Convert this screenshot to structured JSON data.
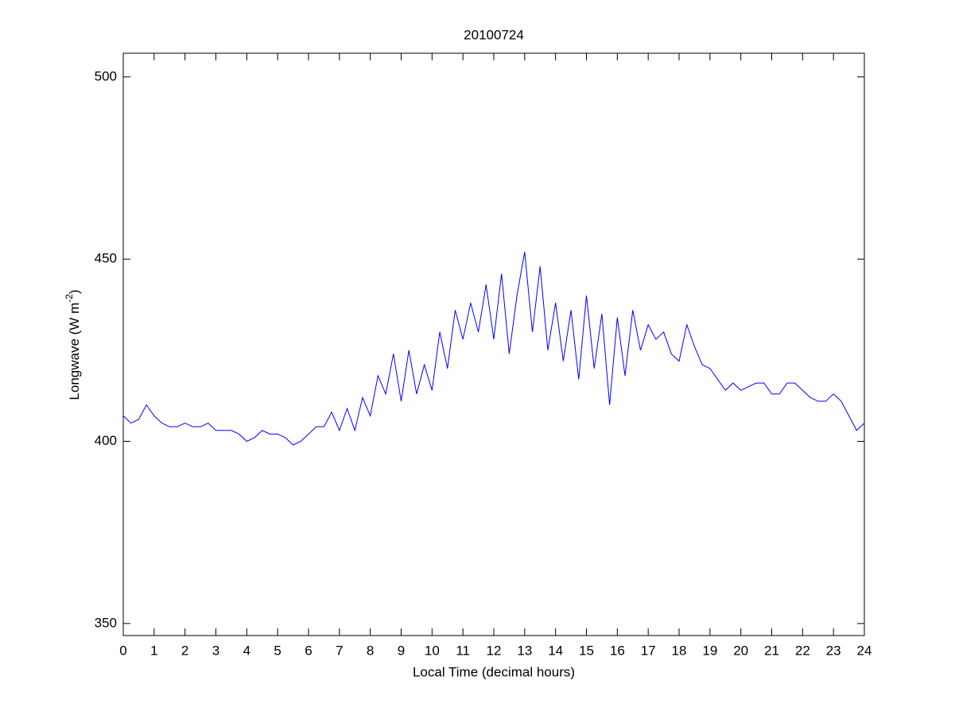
{
  "chart_data": {
    "type": "line",
    "title": "20100724",
    "xlabel": "Local Time (decimal hours)",
    "ylabel": {
      "text": "Longwave (W m",
      "superscript": "-2",
      "suffix": ")"
    },
    "x": [
      0,
      0.25,
      0.5,
      0.75,
      1,
      1.25,
      1.5,
      1.75,
      2,
      2.25,
      2.5,
      2.75,
      3,
      3.25,
      3.5,
      3.75,
      4,
      4.25,
      4.5,
      4.75,
      5,
      5.25,
      5.5,
      5.75,
      6,
      6.25,
      6.5,
      6.75,
      7,
      7.25,
      7.5,
      7.75,
      8,
      8.25,
      8.5,
      8.75,
      9,
      9.25,
      9.5,
      9.75,
      10,
      10.25,
      10.5,
      10.75,
      11,
      11.25,
      11.5,
      11.75,
      12,
      12.25,
      12.5,
      12.75,
      13,
      13.25,
      13.5,
      13.75,
      14,
      14.25,
      14.5,
      14.75,
      15,
      15.25,
      15.5,
      15.75,
      16,
      16.25,
      16.5,
      16.75,
      17,
      17.25,
      17.5,
      17.75,
      18,
      18.25,
      18.5,
      18.75,
      19,
      19.25,
      19.5,
      19.75,
      20,
      20.25,
      20.5,
      20.75,
      21,
      21.25,
      21.5,
      21.75,
      22,
      22.25,
      22.5,
      22.75,
      23,
      23.25,
      23.5,
      23.75,
      24
    ],
    "series": [
      {
        "color": "#0000ff",
        "values": [
          407,
          405,
          406,
          410,
          407,
          405,
          404,
          404,
          405,
          404,
          404,
          405,
          403,
          403,
          403,
          402,
          400,
          401,
          403,
          402,
          402,
          401,
          399,
          400,
          402,
          404,
          404,
          408,
          403,
          409,
          403,
          412,
          407,
          418,
          413,
          424,
          411,
          425,
          413,
          421,
          414,
          430,
          420,
          436,
          428,
          438,
          430,
          443,
          428,
          446,
          424,
          440,
          452,
          430,
          448,
          425,
          438,
          422,
          436,
          417,
          440,
          420,
          435,
          410,
          434,
          418,
          436,
          425,
          432,
          428,
          430,
          424,
          422,
          432,
          426,
          421,
          420,
          417,
          414,
          416,
          414,
          415,
          416,
          416,
          413,
          413,
          416,
          416,
          414,
          412,
          411,
          411,
          413,
          411,
          407,
          403,
          405
        ]
      }
    ],
    "xlim": [
      0,
      24
    ],
    "xticks": [
      0,
      1,
      2,
      3,
      4,
      5,
      6,
      7,
      8,
      9,
      10,
      11,
      12,
      13,
      14,
      15,
      16,
      17,
      18,
      19,
      20,
      21,
      22,
      23,
      24
    ],
    "ylim": [
      346.7,
      506.5
    ],
    "yticks": [
      350,
      400,
      450,
      500
    ]
  }
}
